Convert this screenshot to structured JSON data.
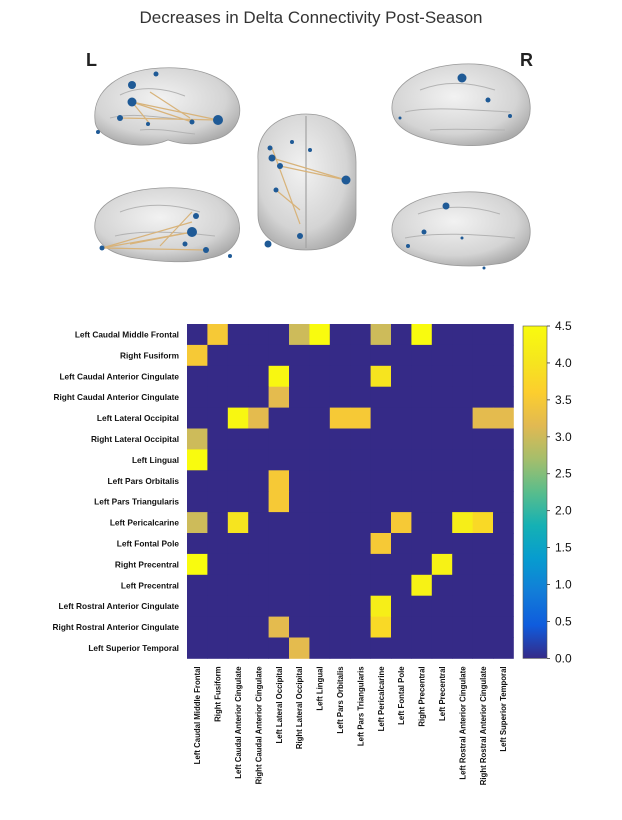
{
  "figure": {
    "title": "Decreases in Delta Connectivity Post-Season",
    "left_label": "L",
    "right_label": "R"
  },
  "chart_data": {
    "type": "heatmap",
    "title": "Decreases in Delta Connectivity Post-Season",
    "row_labels": [
      "Left Caudal Middle Frontal",
      "Right Fusiform",
      "Left Caudal Anterior Cingulate",
      "Right Caudal Anterior Cingulate",
      "Left Lateral Occipital",
      "Right Lateral Occipital",
      "Left Lingual",
      "Left Pars Orbitalis",
      "Left Pars Triangularis",
      "Left Pericalcarine",
      "Left Fontal Pole",
      "Right Precentral",
      "Left Precentral",
      "Left Rostral Anterior Cingulate",
      "Right Rostral Anterior Cingulate",
      "Left Superior Temporal"
    ],
    "col_labels": [
      "Left Caudal Middle Frontal",
      "Right Fusiform",
      "Left Caudal Anterior Cingulate",
      "Right Caudal Anterior Cingulate",
      "Left Lateral Occipital",
      "Right Lateral Occipital",
      "Left Lingual",
      "Left Pars Orbitalis",
      "Left Pars Triangularis",
      "Left Pericalcarine",
      "Left Fontal Pole",
      "Right Precentral",
      "Left Precentral",
      "Left Rostral Anterior Cingulate",
      "Right Rostral Anterior Cingulate",
      "Left Superior Temporal"
    ],
    "values": [
      [
        0,
        3.5,
        0,
        0,
        0,
        3.0,
        4.5,
        0,
        0,
        3.0,
        0,
        4.5,
        0,
        0,
        0,
        0
      ],
      [
        3.5,
        0,
        0,
        0,
        0,
        0,
        0,
        0,
        0,
        0,
        0,
        0,
        0,
        0,
        0,
        0
      ],
      [
        0,
        0,
        0,
        0,
        4.4,
        0,
        0,
        0,
        0,
        4.0,
        0,
        0,
        0,
        0,
        0,
        0
      ],
      [
        0,
        0,
        0,
        0,
        3.2,
        0,
        0,
        0,
        0,
        0,
        0,
        0,
        0,
        0,
        0,
        0
      ],
      [
        0,
        0,
        4.4,
        3.2,
        0,
        0,
        0,
        3.5,
        3.5,
        0,
        0,
        0,
        0,
        0,
        3.2,
        3.2
      ],
      [
        3.0,
        0,
        0,
        0,
        0,
        0,
        0,
        0,
        0,
        0,
        0,
        0,
        0,
        0,
        0,
        0
      ],
      [
        4.5,
        0,
        0,
        0,
        0,
        0,
        0,
        0,
        0,
        0,
        0,
        0,
        0,
        0,
        0,
        0
      ],
      [
        0,
        0,
        0,
        0,
        3.5,
        0,
        0,
        0,
        0,
        0,
        0,
        0,
        0,
        0,
        0,
        0
      ],
      [
        0,
        0,
        0,
        0,
        3.5,
        0,
        0,
        0,
        0,
        0,
        0,
        0,
        0,
        0,
        0,
        0
      ],
      [
        3.0,
        0,
        4.0,
        0,
        0,
        0,
        0,
        0,
        0,
        0,
        3.5,
        0,
        0,
        4.2,
        3.8,
        0
      ],
      [
        0,
        0,
        0,
        0,
        0,
        0,
        0,
        0,
        0,
        3.5,
        0,
        0,
        0,
        0,
        0,
        0
      ],
      [
        4.5,
        0,
        0,
        0,
        0,
        0,
        0,
        0,
        0,
        0,
        0,
        0,
        4.3,
        0,
        0,
        0
      ],
      [
        0,
        0,
        0,
        0,
        0,
        0,
        0,
        0,
        0,
        0,
        0,
        4.3,
        0,
        0,
        0,
        0
      ],
      [
        0,
        0,
        0,
        0,
        0,
        0,
        0,
        0,
        0,
        4.2,
        0,
        0,
        0,
        0,
        0,
        0
      ],
      [
        0,
        0,
        0,
        0,
        3.2,
        0,
        0,
        0,
        0,
        3.8,
        0,
        0,
        0,
        0,
        0,
        0
      ],
      [
        0,
        0,
        0,
        0,
        0,
        3.2,
        0,
        0,
        0,
        0,
        0,
        0,
        0,
        0,
        0,
        0
      ]
    ],
    "colorbar": {
      "range": [
        0,
        4.5
      ],
      "ticks": [
        "0.0",
        "0.5",
        "1.0",
        "1.5",
        "2.0",
        "2.5",
        "3.0",
        "3.5",
        "4.0",
        "4.5"
      ],
      "colormap": "parula"
    },
    "grid": false
  },
  "colors": {
    "low": "#352a87",
    "high": "#f9fb0e",
    "brain": "#d6d6d6",
    "node": "#1f5a96",
    "edge": "#d8b37a"
  }
}
